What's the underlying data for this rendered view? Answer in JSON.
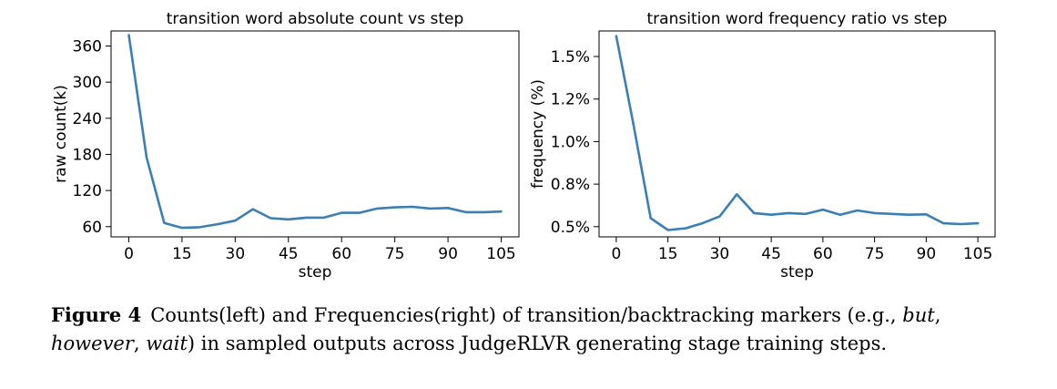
{
  "chart_data": [
    {
      "type": "line",
      "title": "transition word absolute count vs step",
      "xlabel": "step",
      "ylabel": "raw count(k)",
      "xlim": [
        -5,
        110
      ],
      "ylim": [
        43,
        385
      ],
      "xticks": [
        0,
        15,
        30,
        45,
        60,
        75,
        90,
        105
      ],
      "yticks": [
        60,
        120,
        180,
        240,
        300,
        360
      ],
      "ytick_labels": [
        "60",
        "120",
        "180",
        "240",
        "300",
        "360"
      ],
      "grid": false,
      "color": "#3a7fb6",
      "x": [
        0,
        5,
        10,
        15,
        20,
        25,
        30,
        35,
        40,
        45,
        50,
        55,
        60,
        65,
        70,
        75,
        80,
        85,
        90,
        95,
        100,
        105
      ],
      "y": [
        378,
        175,
        66,
        58,
        59,
        64,
        70,
        89,
        74,
        72,
        75,
        75,
        83,
        83,
        90,
        92,
        93,
        90,
        91,
        84,
        84,
        85
      ]
    },
    {
      "type": "line",
      "title": "transition word frequency ratio vs step",
      "xlabel": "step",
      "ylabel": "frequency (%)",
      "xlim": [
        -5,
        110
      ],
      "ylim": [
        0.44,
        1.65
      ],
      "xticks": [
        0,
        15,
        30,
        45,
        60,
        75,
        90,
        105
      ],
      "yticks": [
        0.5,
        0.75,
        1.0,
        1.25,
        1.5
      ],
      "ytick_labels": [
        "0.5%",
        "0.8%",
        "1.0%",
        "1.2%",
        "1.5%"
      ],
      "grid": false,
      "color": "#3a7fb6",
      "x": [
        0,
        5,
        10,
        15,
        20,
        25,
        30,
        35,
        40,
        45,
        50,
        55,
        60,
        65,
        70,
        75,
        80,
        85,
        90,
        95,
        100,
        105
      ],
      "y": [
        1.62,
        1.1,
        0.55,
        0.48,
        0.49,
        0.52,
        0.56,
        0.69,
        0.58,
        0.57,
        0.58,
        0.575,
        0.6,
        0.57,
        0.595,
        0.58,
        0.575,
        0.57,
        0.572,
        0.52,
        0.515,
        0.52
      ]
    }
  ],
  "caption": {
    "label": "Figure 4",
    "part1": "Counts(left) and Frequencies(right) of transition/backtracking markers (e.g., ",
    "em1": "but",
    "sep1": ", ",
    "em2": "however",
    "sep2": ", ",
    "em3": "wait",
    "part2": ") in sampled outputs across JudgeRLVR generating stage training steps."
  }
}
